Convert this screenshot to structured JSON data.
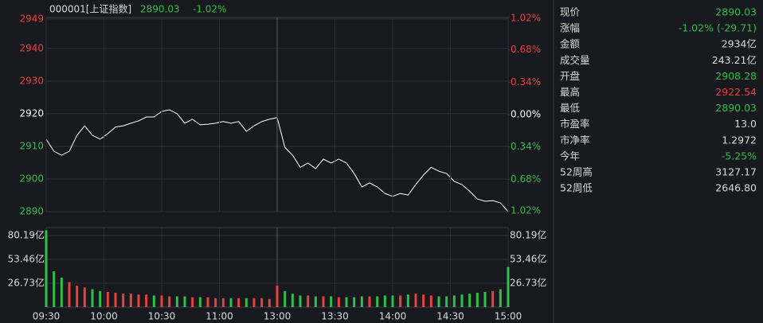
{
  "header": {
    "code": "000001[上证指数]",
    "price": "2890.03",
    "change": "-1.02%"
  },
  "chart_data": [
    {
      "type": "line",
      "name": "price",
      "x": [
        0,
        4,
        8,
        12,
        16,
        20,
        24,
        28,
        32,
        36,
        40,
        44,
        48,
        52,
        56,
        60,
        64,
        68,
        72,
        76,
        80,
        84,
        88,
        92,
        96,
        100,
        104,
        108,
        112,
        116,
        120,
        124,
        128,
        132,
        136,
        140,
        144,
        148,
        152,
        156,
        160,
        164,
        168,
        172,
        176,
        180,
        184,
        188,
        192,
        196,
        200,
        204,
        208,
        212,
        216,
        220,
        224,
        228,
        232,
        236,
        240
      ],
      "values": [
        2912.2,
        2908.5,
        2907.3,
        2908.5,
        2913.4,
        2916.3,
        2913.4,
        2912.2,
        2913.9,
        2915.9,
        2916.3,
        2917.1,
        2917.8,
        2919.0,
        2919.0,
        2920.7,
        2921.2,
        2920.0,
        2917.1,
        2918.3,
        2916.6,
        2916.8,
        2917.1,
        2917.6,
        2917.1,
        2917.6,
        2914.6,
        2916.3,
        2917.6,
        2918.3,
        2918.8,
        2909.7,
        2907.3,
        2903.6,
        2904.9,
        2903.2,
        2906.1,
        2904.9,
        2906.1,
        2904.9,
        2901.7,
        2897.6,
        2898.8,
        2897.6,
        2895.6,
        2894.7,
        2895.6,
        2895.1,
        2898.3,
        2901.2,
        2903.6,
        2902.4,
        2901.7,
        2899.3,
        2898.3,
        2896.3,
        2893.9,
        2893.2,
        2893.4,
        2892.7,
        2890.03
      ],
      "color": "#ffffff",
      "xlim": [
        0,
        240
      ],
      "ylim": [
        2890.03,
        2949.45
      ],
      "yticks": [
        2890,
        2900,
        2910,
        2920,
        2930,
        2940,
        2949
      ],
      "ytick_colors": [
        "#2fbf4a",
        "#2fbf4a",
        "#2fbf4a",
        "#ffffff",
        "#e8413c",
        "#e8413c",
        "#e8413c"
      ],
      "y2lim": [
        -1.02,
        1.02
      ],
      "y2ticks": [
        {
          "value": -1.02,
          "label": "1.02%"
        },
        {
          "value": -0.68,
          "label": "0.68%"
        },
        {
          "value": -0.34,
          "label": "0.34%"
        },
        {
          "value": 0,
          "label": "0.00%"
        },
        {
          "value": 0.34,
          "label": "0.34%"
        },
        {
          "value": 0.68,
          "label": "0.68%"
        },
        {
          "value": 1.02,
          "label": "1.02%"
        }
      ],
      "y2tick_colors": [
        "#2fbf4a",
        "#2fbf4a",
        "#2fbf4a",
        "#ffffff",
        "#e8413c",
        "#e8413c",
        "#e8413c"
      ],
      "grid": true
    },
    {
      "type": "bar",
      "name": "volume",
      "x": [
        0,
        4,
        8,
        12,
        16,
        20,
        24,
        28,
        32,
        36,
        40,
        44,
        48,
        52,
        56,
        60,
        64,
        68,
        72,
        76,
        80,
        84,
        88,
        92,
        96,
        100,
        104,
        108,
        112,
        116,
        120,
        124,
        128,
        132,
        136,
        140,
        144,
        148,
        152,
        156,
        160,
        164,
        168,
        172,
        176,
        180,
        184,
        188,
        192,
        196,
        200,
        204,
        208,
        212,
        216,
        220,
        224,
        228,
        232,
        236,
        240
      ],
      "values": [
        86,
        40,
        33,
        28,
        24,
        22,
        20,
        18,
        17,
        16,
        15,
        15,
        14,
        14,
        13,
        13,
        12,
        12,
        12,
        11,
        11,
        11,
        10,
        10,
        10,
        10,
        10,
        10,
        10,
        9,
        24,
        18,
        15,
        13,
        13,
        12,
        12,
        12,
        11,
        11,
        11,
        12,
        12,
        12,
        13,
        13,
        13,
        14,
        15,
        14,
        13,
        12,
        12,
        13,
        14,
        15,
        16,
        17,
        18,
        20,
        45
      ],
      "up_color": "#e8413c",
      "down_color": "#2fbf4a",
      "xlim": [
        0,
        240
      ],
      "ylim": [
        0,
        89.1
      ],
      "yticks": [
        {
          "value": 26.73,
          "label": "26.73亿"
        },
        {
          "value": 53.46,
          "label": "53.46亿"
        },
        {
          "value": 80.19,
          "label": "80.19亿"
        }
      ],
      "xticks": [
        {
          "value": 0,
          "label": "09:30"
        },
        {
          "value": 30,
          "label": "10:00"
        },
        {
          "value": 60,
          "label": "10:30"
        },
        {
          "value": 90,
          "label": "11:00"
        },
        {
          "value": 120,
          "label": "13:00"
        },
        {
          "value": 150,
          "label": "13:30"
        },
        {
          "value": 180,
          "label": "14:00"
        },
        {
          "value": 210,
          "label": "14:30"
        },
        {
          "value": 240,
          "label": "15:00"
        }
      ],
      "grid": true
    }
  ],
  "quote_panel": {
    "rows": [
      {
        "label": "现价",
        "value": "2890.03",
        "color": "#2fbf4a"
      },
      {
        "label": "涨幅",
        "value": "-1.02% (-29.71)",
        "color": "#2fbf4a"
      },
      {
        "label": "金额",
        "value": "2934亿",
        "color": "#d8d8d8"
      },
      {
        "label": "成交量",
        "value": "243.21亿",
        "color": "#d8d8d8"
      },
      {
        "label": "开盘",
        "value": "2908.28",
        "color": "#2fbf4a"
      },
      {
        "label": "最高",
        "value": "2922.54",
        "color": "#e8413c"
      },
      {
        "label": "最低",
        "value": "2890.03",
        "color": "#2fbf4a"
      },
      {
        "label": "市盈率",
        "value": "13.0",
        "color": "#d8d8d8"
      },
      {
        "label": "市净率",
        "value": "1.2972",
        "color": "#d8d8d8"
      },
      {
        "label": "今年",
        "value": "-5.25%",
        "color": "#2fbf4a"
      },
      {
        "label": "52周高",
        "value": "3127.17",
        "color": "#d8d8d8"
      },
      {
        "label": "52周低",
        "value": "2646.80",
        "color": "#d8d8d8"
      }
    ]
  }
}
